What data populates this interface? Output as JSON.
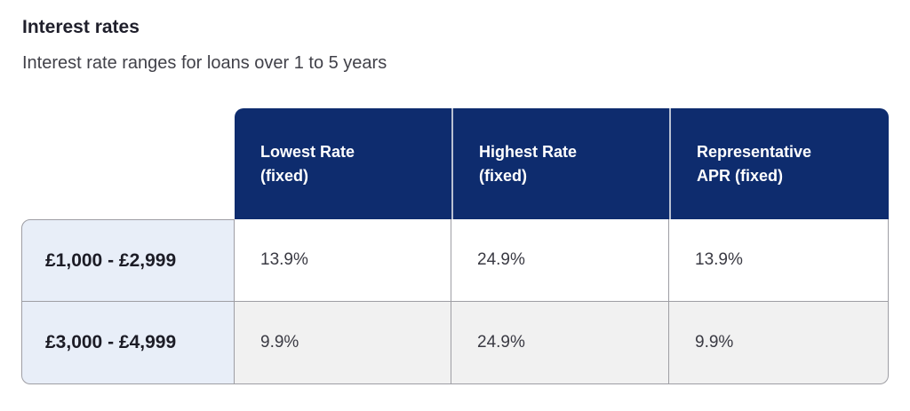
{
  "header": {
    "title": "Interest rates",
    "subtitle": "Interest rate ranges for loans over 1 to 5 years"
  },
  "table": {
    "columns": [
      {
        "line1": "Lowest Rate",
        "line2": "(fixed)"
      },
      {
        "line1": "Highest Rate",
        "line2": "(fixed)"
      },
      {
        "line1": "Representative",
        "line2": "APR (fixed)"
      }
    ],
    "rows": [
      {
        "label": "£1,000 - £2,999",
        "values": [
          "13.9%",
          "24.9%",
          "13.9%"
        ]
      },
      {
        "label": "£3,000 - £4,999",
        "values": [
          "9.9%",
          "24.9%",
          "9.9%"
        ]
      }
    ]
  },
  "colors": {
    "header_bg": "#0e2c6e",
    "row_label_bg": "#e8eef8",
    "alt_row_bg": "#f1f1f1",
    "border": "#9e9ea4",
    "header_separator": "#b9c1d2",
    "title_color": "#1f1f2b",
    "subtitle_color": "#414149",
    "label_color": "#1c1c26",
    "value_color": "#3a3a43"
  }
}
